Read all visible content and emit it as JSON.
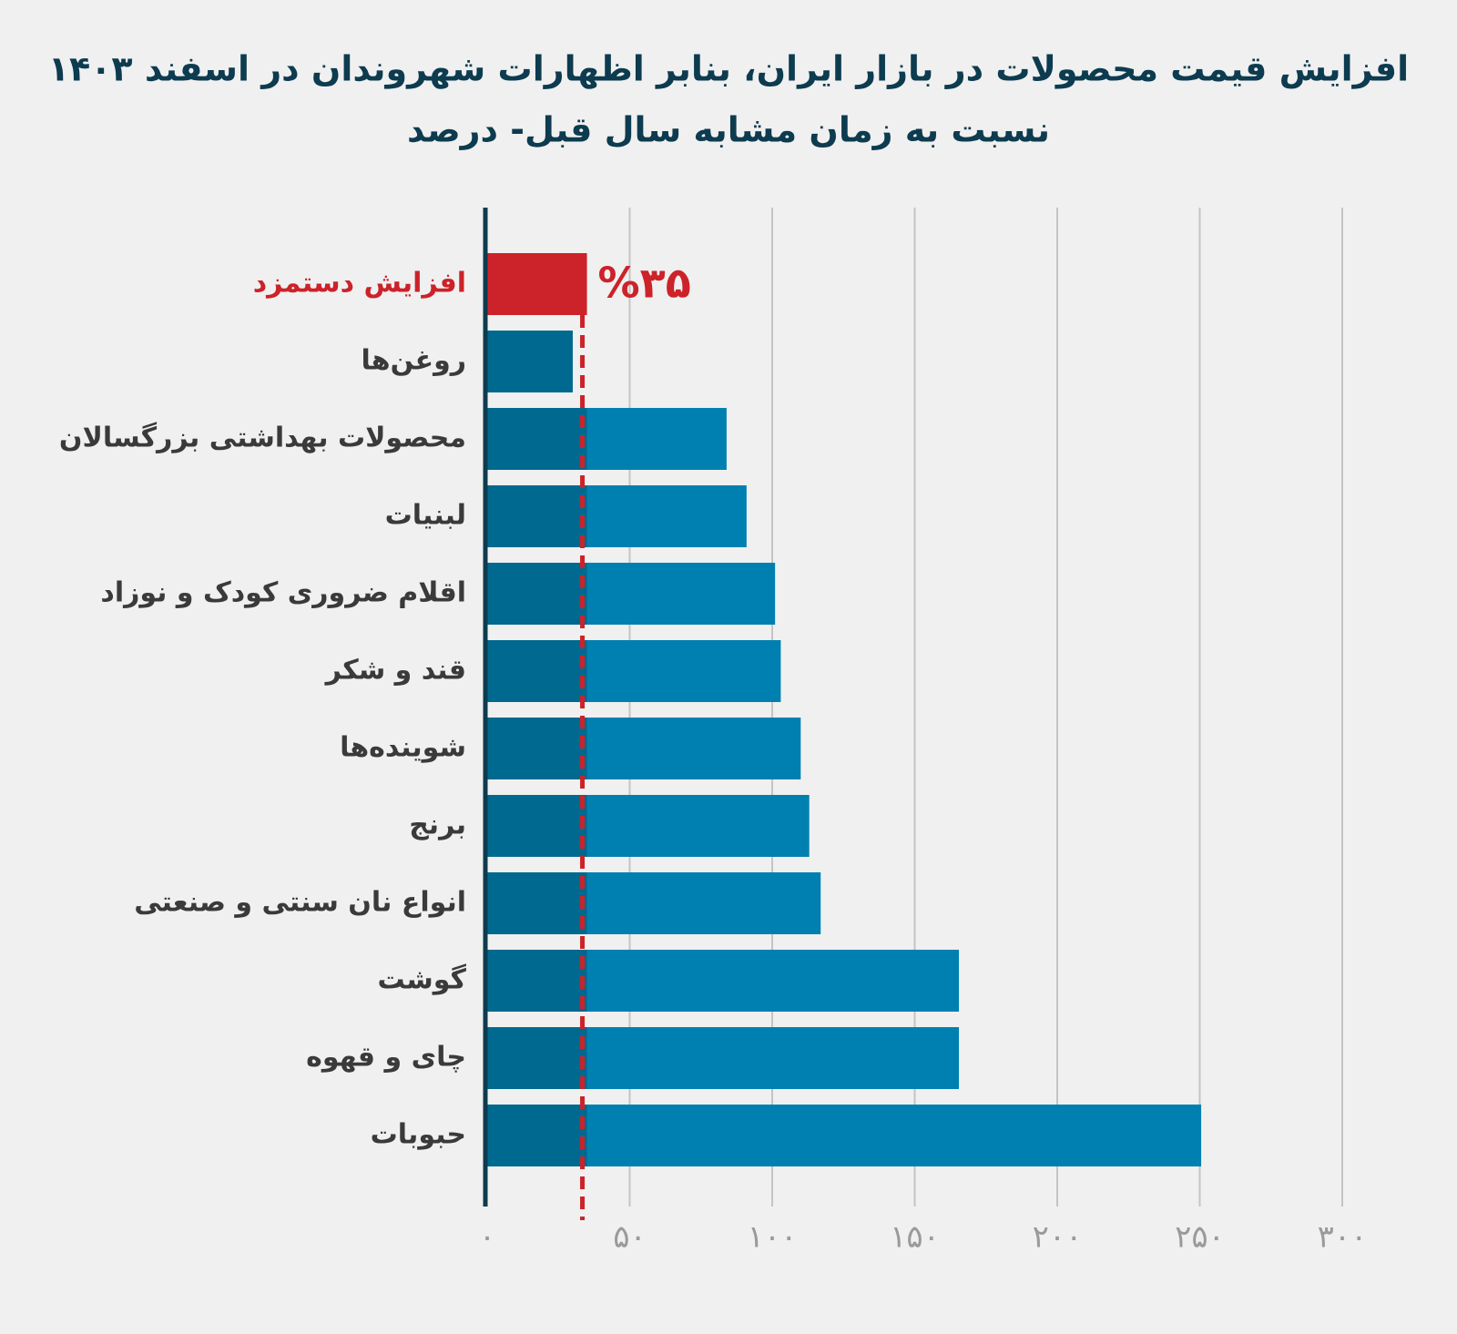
{
  "chart_data": {
    "type": "hbar",
    "title": [
      "افزایش قیمت محصولات در بازار ایران، بنابر اظهارات شهروندان در اسفند ۱۴۰۳",
      "نسبت به زمان مشابه سال قبل- درصد"
    ],
    "categories": [
      "افزایش دستمزد",
      "روغن‌ها",
      "محصولات بهداشتی بزرگسالان",
      "لبنیات",
      "اقلام ضروری کودک و نوزاد",
      "قند و شکر",
      "شوینده‌ها",
      "برنج",
      "انواع نان سنتی و صنعتی",
      "گوشت",
      "چای و قهوه",
      "حبوبات"
    ],
    "values": [
      35,
      30,
      84,
      91,
      101,
      103,
      110,
      113,
      117,
      165.5,
      165.5,
      250.5
    ],
    "value_labels": [
      "%۳۵",
      null,
      null,
      null,
      null,
      null,
      null,
      null,
      null,
      null,
      null,
      null
    ],
    "colors": [
      "#cc2229",
      "#00698f",
      "#0080b0",
      "#0080b0",
      "#0080b0",
      "#0080b0",
      "#0080b0",
      "#0080b0",
      "#0080b0",
      "#0080b0",
      "#0080b0",
      "#0080b0"
    ],
    "label_colors": [
      "#cc2229",
      "#3a3a3a",
      "#3a3a3a",
      "#3a3a3a",
      "#3a3a3a",
      "#3a3a3a",
      "#3a3a3a",
      "#3a3a3a",
      "#3a3a3a",
      "#3a3a3a",
      "#3a3a3a",
      "#3a3a3a"
    ],
    "xlim": [
      0,
      300
    ],
    "xticks": [
      {
        "value": 0,
        "label": "۰"
      },
      {
        "value": 50,
        "label": "۵۰"
      },
      {
        "value": 100,
        "label": "۱۰۰"
      },
      {
        "value": 150,
        "label": "۱۵۰"
      },
      {
        "value": 200,
        "label": "۲۰۰"
      },
      {
        "value": 250,
        "label": "۲۵۰"
      },
      {
        "value": 300,
        "label": "۳۰۰"
      }
    ],
    "grid": true
  }
}
